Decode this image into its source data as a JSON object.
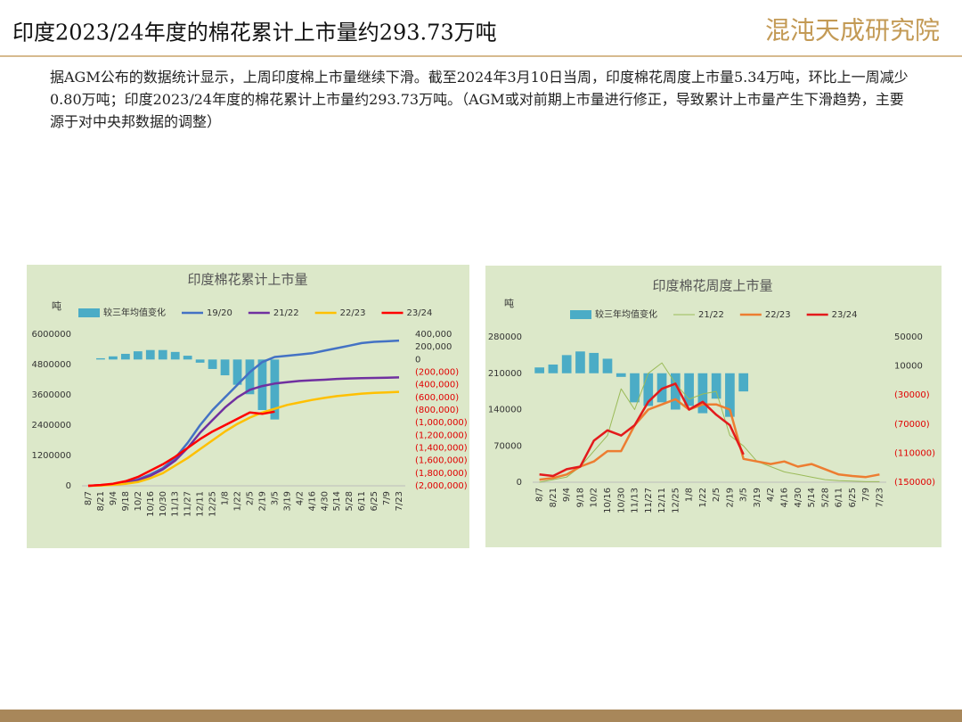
{
  "header": {
    "title": "印度2023/24年度的棉花累计上市量约293.73万吨",
    "logo": "混沌天成研究院"
  },
  "paragraph": "据AGM公布的数据统计显示，上周印度棉上市量继续下滑。截至2024年3月10日当周，印度棉花周度上市量5.34万吨，环比上一周减少0.80万吨；印度2023/24年度的棉花累计上市量约293.73万吨。（AGM或对前期上市量进行修正，导致累计上市量产生下滑趋势，主要源于对中央邦数据的调整）",
  "chart_data": [
    {
      "type": "bar-line",
      "title": "印度棉花累计上市量",
      "y_label": "吨",
      "categories": [
        "8/7",
        "8/21",
        "9/4",
        "9/18",
        "10/2",
        "10/16",
        "10/30",
        "11/13",
        "11/27",
        "12/11",
        "12/25",
        "1/8",
        "1/22",
        "2/5",
        "2/19",
        "3/5",
        "3/19",
        "4/2",
        "4/16",
        "4/30",
        "5/14",
        "5/28",
        "6/11",
        "6/25",
        "7/9",
        "7/23"
      ],
      "ylim": [
        0,
        6000000
      ],
      "yticks": [
        0,
        1200000,
        2400000,
        3600000,
        4800000,
        6000000
      ],
      "y2lim": [
        -2000000,
        400000
      ],
      "y2ticks": [
        {
          "value": 400000,
          "label": "400,000"
        },
        {
          "value": 200000,
          "label": "200,000"
        },
        0,
        {
          "value": -200000,
          "label": "(200,000)"
        },
        {
          "value": -400000,
          "label": "(400,000)"
        },
        {
          "value": -600000,
          "label": "(600,000)"
        },
        {
          "value": -800000,
          "label": "(800,000)"
        },
        {
          "value": -1000000,
          "label": "(1,000,000)"
        },
        {
          "value": -1200000,
          "label": "(1,200,000)"
        },
        {
          "value": -1400000,
          "label": "(1,400,000)"
        },
        {
          "value": -1600000,
          "label": "(1,600,000)"
        },
        {
          "value": -1800000,
          "label": "(1,800,000)"
        },
        {
          "value": -2000000,
          "label": "(2,000,000)"
        }
      ],
      "grid": false,
      "series": [
        {
          "name": "较三年均值变化",
          "kind": "bar",
          "axis": "y2",
          "color": "#4bacc6",
          "values": [
            0,
            20000,
            50000,
            90000,
            130000,
            150000,
            150000,
            120000,
            60000,
            -50000,
            -150000,
            -250000,
            -400000,
            -550000,
            -800000,
            -950000,
            null,
            null,
            null,
            null,
            null,
            null,
            null,
            null,
            null,
            null
          ]
        },
        {
          "name": "19/20",
          "kind": "line",
          "color": "#4472c4",
          "values": [
            0,
            20000,
            60000,
            120000,
            250000,
            450000,
            700000,
            1100000,
            1700000,
            2400000,
            3000000,
            3500000,
            4000000,
            4500000,
            4900000,
            5100000,
            5150000,
            5200000,
            5250000,
            5350000,
            5450000,
            5550000,
            5650000,
            5700000,
            5720000,
            5750000
          ]
        },
        {
          "name": "21/22",
          "kind": "line",
          "color": "#7030a0",
          "values": [
            0,
            20000,
            60000,
            120000,
            220000,
            400000,
            650000,
            1000000,
            1500000,
            2100000,
            2600000,
            3100000,
            3500000,
            3800000,
            3950000,
            4050000,
            4100000,
            4150000,
            4180000,
            4200000,
            4230000,
            4250000,
            4260000,
            4270000,
            4280000,
            4290000
          ]
        },
        {
          "name": "22/23",
          "kind": "line",
          "color": "#ffc000",
          "values": [
            0,
            10000,
            40000,
            80000,
            150000,
            300000,
            500000,
            800000,
            1100000,
            1450000,
            1800000,
            2150000,
            2450000,
            2700000,
            2900000,
            3050000,
            3200000,
            3300000,
            3400000,
            3480000,
            3550000,
            3600000,
            3650000,
            3680000,
            3700000,
            3720000
          ]
        },
        {
          "name": "23/24",
          "kind": "line",
          "color": "#ff0000",
          "values": [
            0,
            30000,
            80000,
            180000,
            350000,
            600000,
            850000,
            1150000,
            1500000,
            1850000,
            2150000,
            2400000,
            2650000,
            2900000,
            2850000,
            2937300,
            null,
            null,
            null,
            null,
            null,
            null,
            null,
            null,
            null,
            null
          ]
        }
      ]
    },
    {
      "type": "bar-line",
      "title": "印度棉花周度上市量",
      "y_label": "吨",
      "categories": [
        "8/7",
        "8/21",
        "9/4",
        "9/18",
        "10/2",
        "10/16",
        "10/30",
        "11/13",
        "11/27",
        "12/11",
        "12/25",
        "1/8",
        "1/22",
        "2/5",
        "2/19",
        "3/5",
        "3/19",
        "4/2",
        "4/16",
        "4/30",
        "5/14",
        "5/28",
        "6/11",
        "6/25",
        "7/9",
        "7/23"
      ],
      "ylim": [
        0,
        280000
      ],
      "yticks": [
        0,
        70000,
        140000,
        210000,
        280000
      ],
      "y2lim": [
        -150000,
        50000
      ],
      "y2ticks": [
        50000,
        10000,
        {
          "value": -30000,
          "label": "(30000)"
        },
        {
          "value": -70000,
          "label": "(70000)"
        },
        {
          "value": -110000,
          "label": "(110000)"
        },
        {
          "value": -150000,
          "label": "(150000)"
        }
      ],
      "grid": false,
      "series": [
        {
          "name": "较三年均值变化",
          "kind": "bar",
          "axis": "y2",
          "color": "#4bacc6",
          "values": [
            8000,
            12000,
            25000,
            30000,
            28000,
            20000,
            -5000,
            -40000,
            -45000,
            -40000,
            -50000,
            -45000,
            -55000,
            -35000,
            -60000,
            -25000,
            null,
            null,
            null,
            null,
            null,
            null,
            null,
            null,
            null,
            null
          ]
        },
        {
          "name": "21/22",
          "kind": "line",
          "color": "#9bbb59",
          "width": 1,
          "values": [
            0,
            5000,
            10000,
            30000,
            60000,
            90000,
            180000,
            140000,
            210000,
            230000,
            190000,
            160000,
            170000,
            175000,
            90000,
            70000,
            40000,
            30000,
            20000,
            15000,
            10000,
            5000,
            3000,
            2000,
            1000,
            1000
          ]
        },
        {
          "name": "22/23",
          "kind": "line",
          "color": "#ed7d31",
          "values": [
            5000,
            8000,
            15000,
            30000,
            40000,
            60000,
            60000,
            110000,
            140000,
            150000,
            160000,
            140000,
            150000,
            150000,
            140000,
            45000,
            40000,
            35000,
            40000,
            30000,
            35000,
            25000,
            15000,
            12000,
            10000,
            15000
          ]
        },
        {
          "name": "23/24",
          "kind": "line",
          "color": "#e31a1c",
          "values": [
            15000,
            12000,
            25000,
            30000,
            80000,
            100000,
            90000,
            110000,
            155000,
            180000,
            190000,
            140000,
            155000,
            130000,
            110000,
            53400,
            null,
            null,
            null,
            null,
            null,
            null,
            null,
            null,
            null,
            null
          ]
        }
      ]
    }
  ]
}
